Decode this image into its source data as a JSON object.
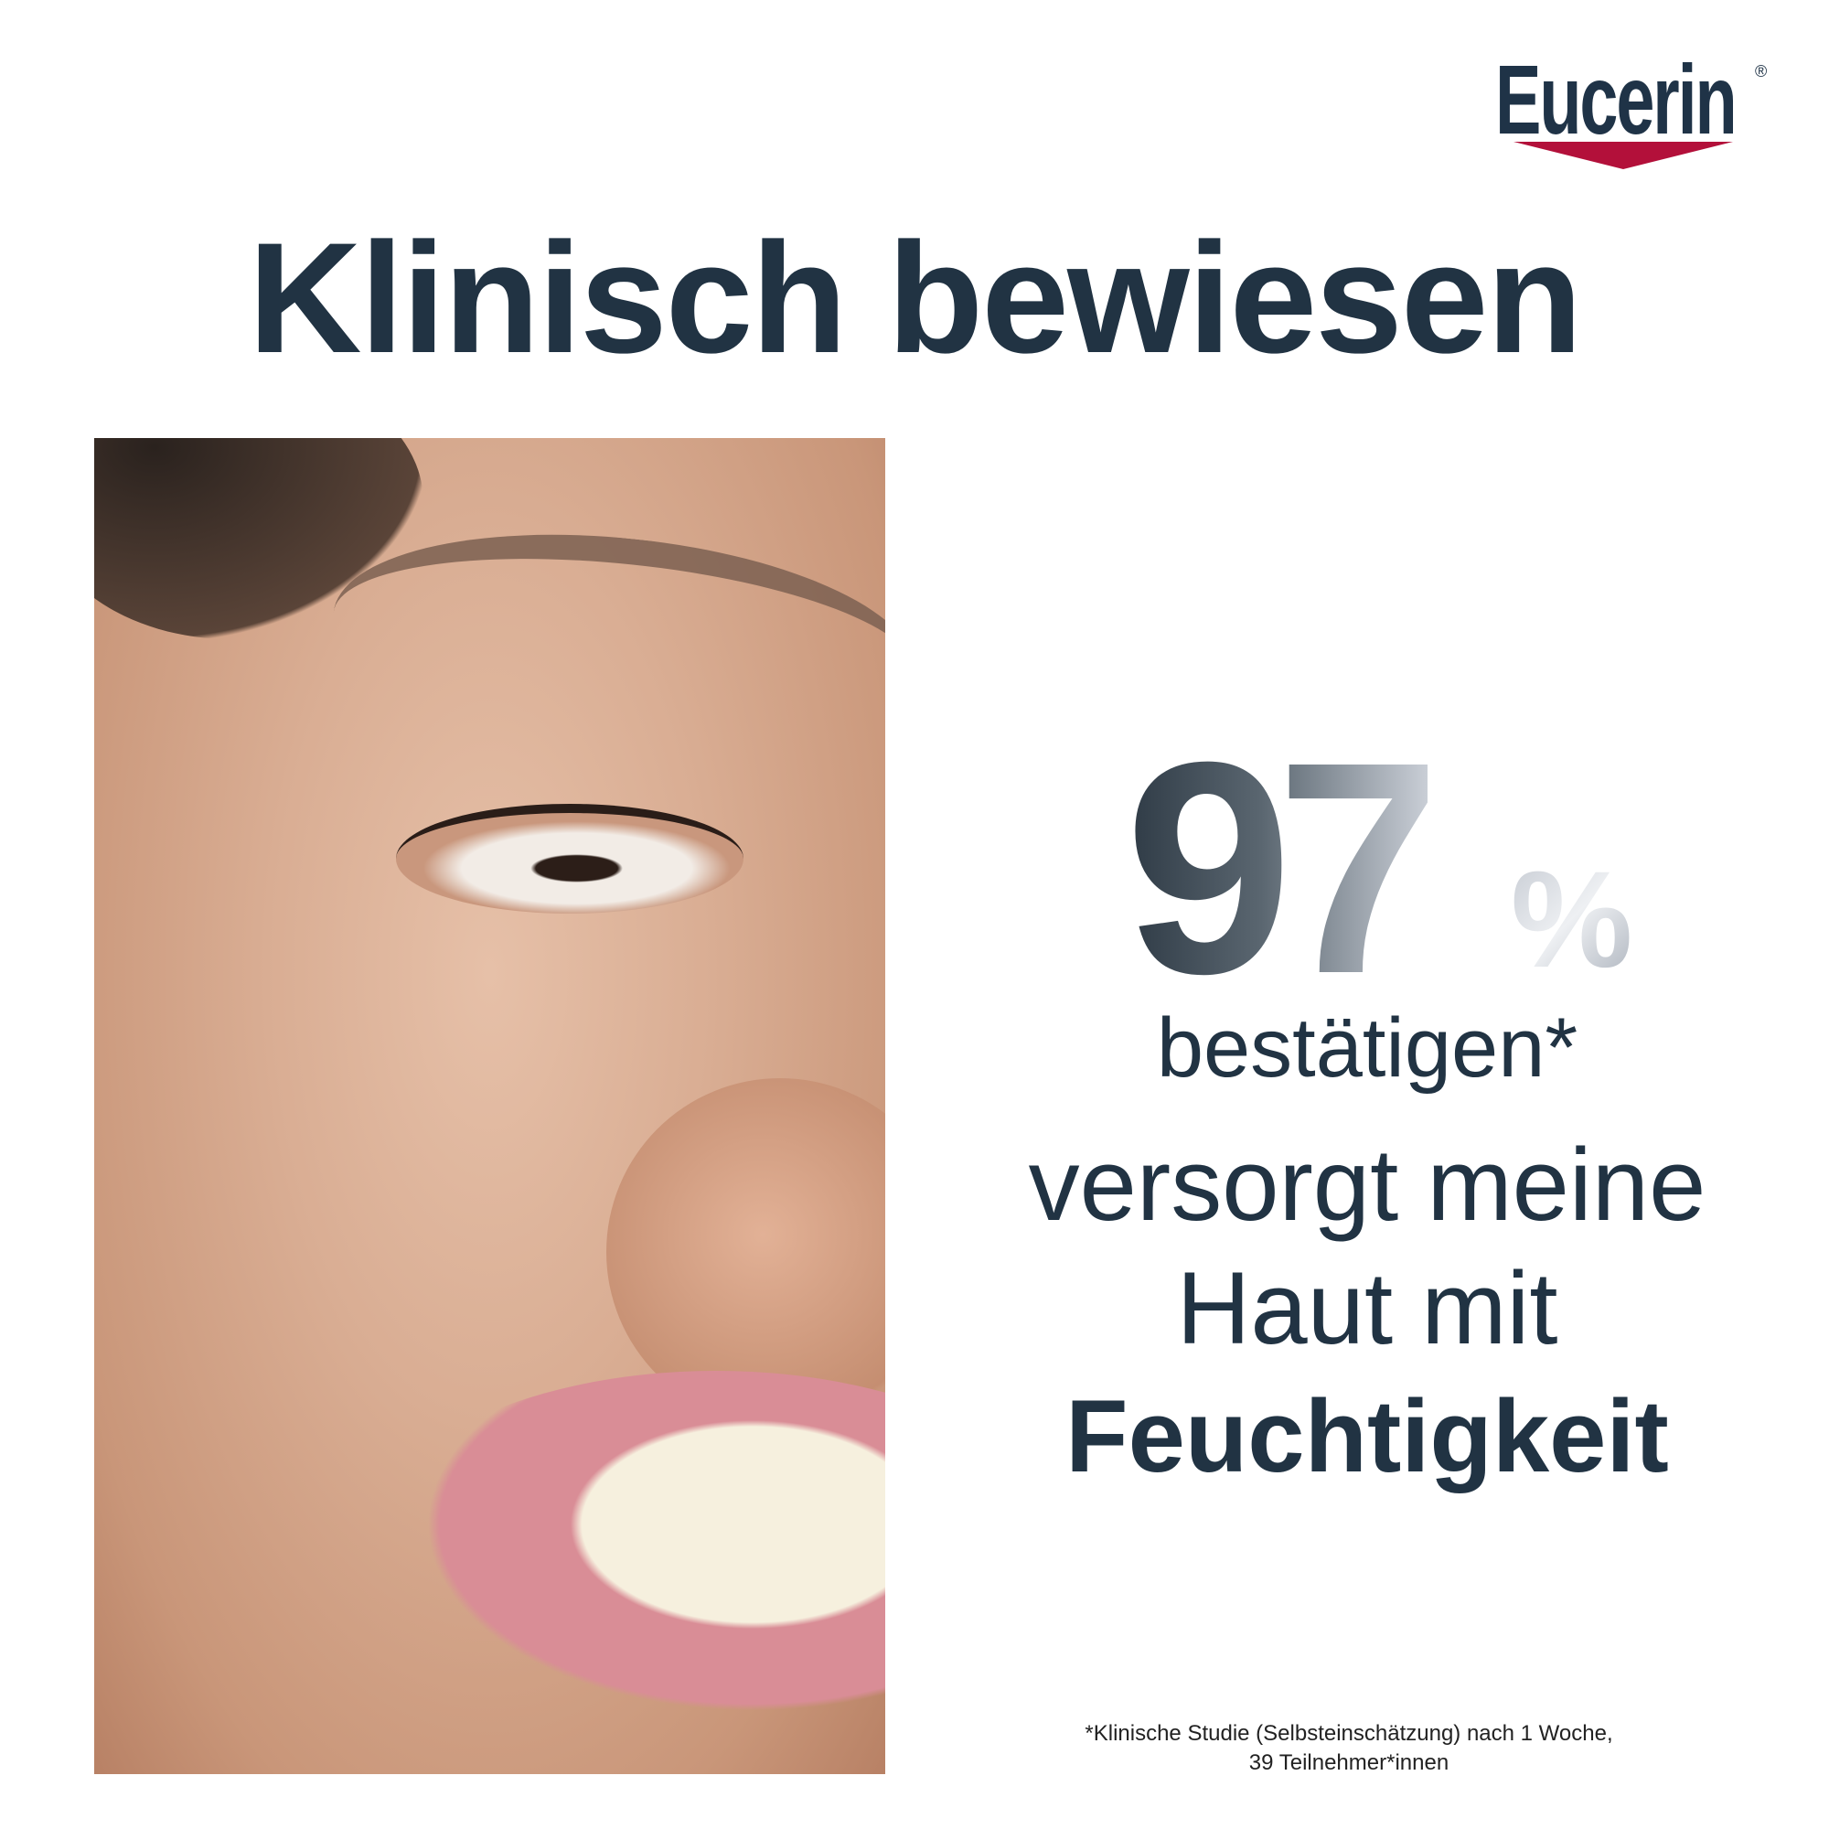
{
  "brand": {
    "name": "Eucerin",
    "registered": "®",
    "accent_color": "#b3103a",
    "text_color": "#1f3347"
  },
  "headline": "Klinisch bewiesen",
  "statistic": {
    "value": "97",
    "unit": "%",
    "percent": 97
  },
  "claim": {
    "line1": "bestätigen*",
    "line2": "versorgt meine",
    "line3": "Haut mit",
    "line4": "Feuchtigkeit"
  },
  "footnote": {
    "line1": "*Klinische Studie (Selbsteinschätzung) nach 1 Woche,",
    "line2": "39 Teilnehmer*innen"
  }
}
